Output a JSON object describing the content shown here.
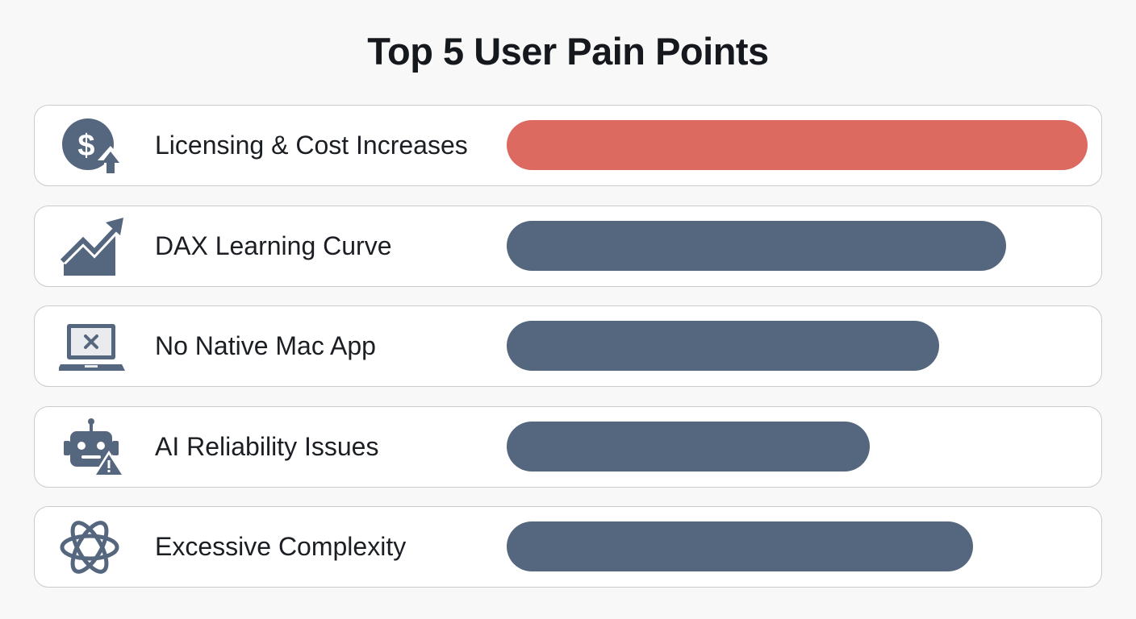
{
  "title": "Top 5 User Pain Points",
  "colors": {
    "highlight": "#dd6a60",
    "default": "#55677f",
    "icon": "#55677f"
  },
  "chart_data": {
    "type": "bar",
    "orientation": "horizontal",
    "title": "Top 5 User Pain Points",
    "categories": [
      "Licensing & Cost Increases",
      "DAX Learning Curve",
      "No Native Mac App",
      "AI Reliability Issues",
      "Excessive Complexity"
    ],
    "values": [
      100,
      86,
      74.5,
      62.5,
      80.3
    ],
    "xlim": [
      0,
      100
    ],
    "grid": false,
    "legend": "none",
    "icons": [
      "dollar-up-icon",
      "trend-up-icon",
      "laptop-x-icon",
      "robot-warning-icon",
      "atom-icon"
    ],
    "bar_colors": [
      "#dd6a60",
      "#55677f",
      "#55677f",
      "#55677f",
      "#55677f"
    ]
  }
}
